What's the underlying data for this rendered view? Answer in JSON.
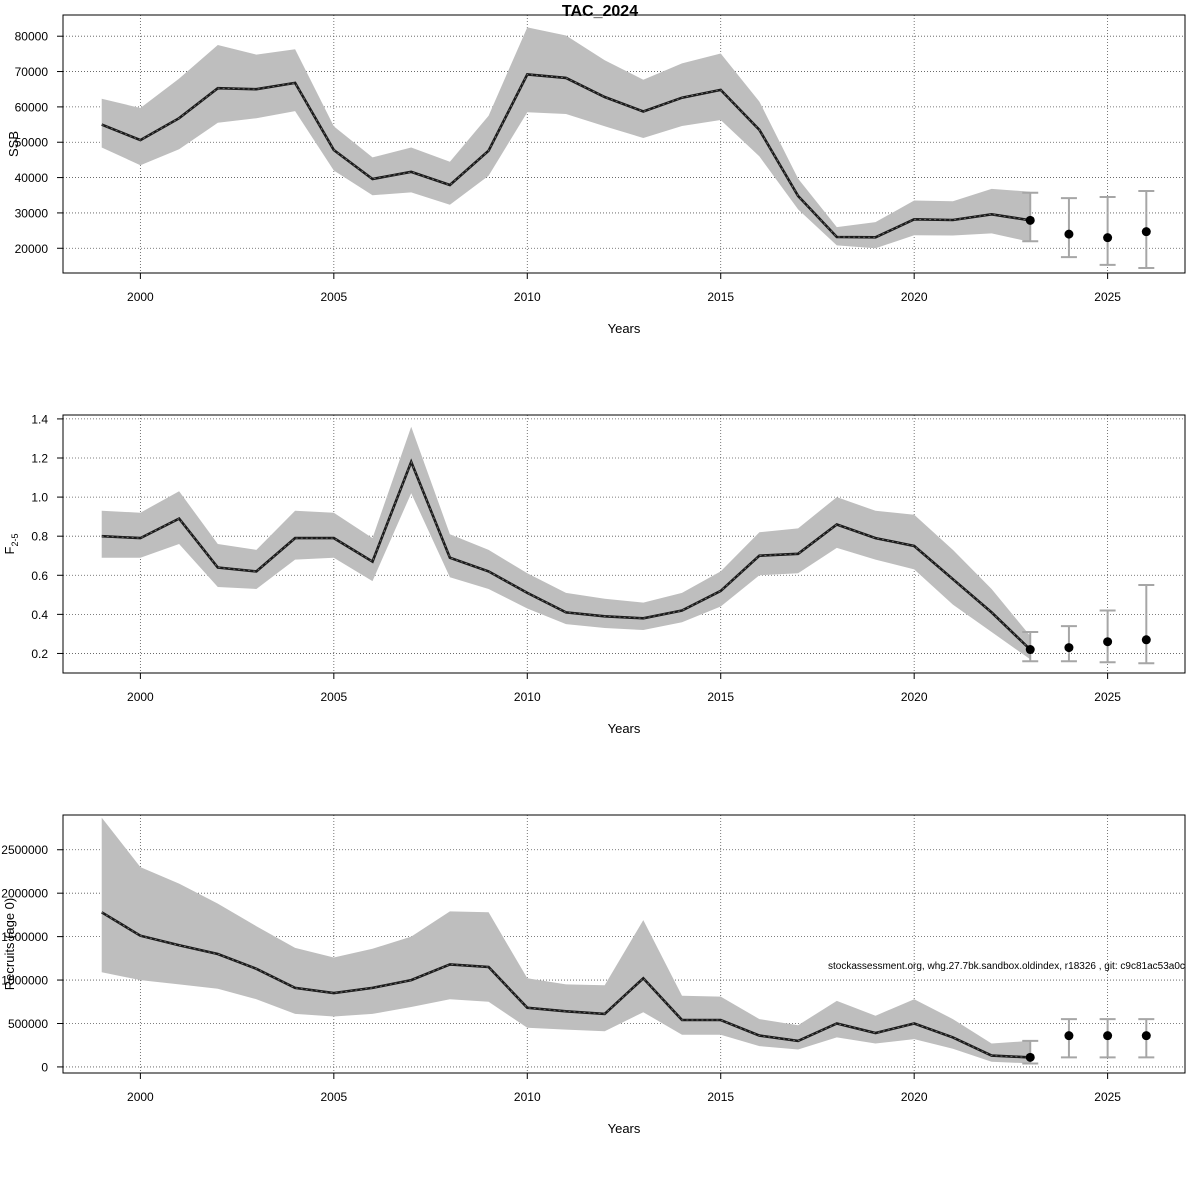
{
  "page": {
    "title": "TAC_2024",
    "footnote": "stockassessment.org, whg.27.7bk.sandbox.oldindex, r18326 , git: c9c81ac53a0c"
  },
  "colors": {
    "band": "#bebebe",
    "line": "#1a1a1a",
    "grid": "#555555",
    "errorbar": "#a6a6a6",
    "point": "#000000"
  },
  "chart_data": [
    {
      "type": "line",
      "name": "ssb",
      "title": "TAC_2024",
      "xlabel": "Years",
      "ylabel": "SSB",
      "ylabel_sub": "",
      "xlim": [
        1998,
        2027
      ],
      "ylim": [
        13000,
        86000
      ],
      "grid": true,
      "xticks": [
        "2000",
        "2005",
        "2010",
        "2015",
        "2020",
        "2025"
      ],
      "yticks": [
        "20000",
        "30000",
        "40000",
        "50000",
        "60000",
        "70000",
        "80000"
      ],
      "x": [
        1999,
        2000,
        2001,
        2002,
        2003,
        2004,
        2005,
        2006,
        2007,
        2008,
        2009,
        2010,
        2011,
        2012,
        2013,
        2014,
        2015,
        2016,
        2017,
        2018,
        2019,
        2020,
        2021,
        2022,
        2023
      ],
      "estimate": [
        55000,
        50600,
        56800,
        65300,
        65000,
        66800,
        47800,
        39600,
        41600,
        37900,
        47600,
        69200,
        68200,
        62800,
        58700,
        62600,
        64800,
        53500,
        34800,
        23200,
        23100,
        28200,
        28000,
        29600,
        27900
      ],
      "lower": [
        48500,
        43500,
        48000,
        55500,
        56800,
        58800,
        42000,
        35000,
        35800,
        32300,
        40500,
        58500,
        58000,
        54500,
        51200,
        54600,
        56300,
        46000,
        31000,
        20800,
        20000,
        23700,
        23600,
        24200,
        21800
      ],
      "upper": [
        62300,
        59700,
        68000,
        77500,
        74800,
        76300,
        54500,
        45700,
        48500,
        44500,
        57500,
        82500,
        80200,
        73200,
        67700,
        72300,
        75100,
        61500,
        39700,
        26000,
        27400,
        33500,
        33300,
        36800,
        36000
      ],
      "forecast": {
        "x": [
          2023,
          2024,
          2025,
          2026
        ],
        "median": [
          27900,
          24000,
          23000,
          24700
        ],
        "lower": [
          22000,
          17500,
          15300,
          14400
        ],
        "upper": [
          35700,
          34200,
          34500,
          36200
        ]
      }
    },
    {
      "type": "line",
      "name": "fbar",
      "title": "",
      "xlabel": "Years",
      "ylabel": "F",
      "ylabel_sub": "2-5",
      "xlim": [
        1998,
        2027
      ],
      "ylim": [
        0.1,
        1.42
      ],
      "grid": true,
      "xticks": [
        "2000",
        "2005",
        "2010",
        "2015",
        "2020",
        "2025"
      ],
      "yticks": [
        "0.2",
        "0.4",
        "0.6",
        "0.8",
        "1.0",
        "1.2",
        "1.4"
      ],
      "x": [
        1999,
        2000,
        2001,
        2002,
        2003,
        2004,
        2005,
        2006,
        2007,
        2008,
        2009,
        2010,
        2011,
        2012,
        2013,
        2014,
        2015,
        2016,
        2017,
        2018,
        2019,
        2020,
        2021,
        2022,
        2023
      ],
      "estimate": [
        0.8,
        0.79,
        0.89,
        0.64,
        0.62,
        0.79,
        0.79,
        0.67,
        1.18,
        0.69,
        0.62,
        0.51,
        0.41,
        0.39,
        0.38,
        0.42,
        0.52,
        0.7,
        0.71,
        0.86,
        0.79,
        0.75,
        0.58,
        0.41,
        0.22
      ],
      "lower": [
        0.69,
        0.69,
        0.76,
        0.54,
        0.53,
        0.68,
        0.69,
        0.57,
        1.02,
        0.59,
        0.53,
        0.43,
        0.35,
        0.33,
        0.32,
        0.36,
        0.44,
        0.6,
        0.61,
        0.74,
        0.68,
        0.63,
        0.45,
        0.31,
        0.17
      ],
      "upper": [
        0.93,
        0.92,
        1.03,
        0.76,
        0.73,
        0.93,
        0.92,
        0.79,
        1.36,
        0.81,
        0.73,
        0.61,
        0.51,
        0.48,
        0.46,
        0.51,
        0.62,
        0.82,
        0.84,
        1.0,
        0.93,
        0.91,
        0.73,
        0.53,
        0.29
      ],
      "forecast": {
        "x": [
          2023,
          2024,
          2025,
          2026
        ],
        "median": [
          0.22,
          0.23,
          0.26,
          0.27
        ],
        "lower": [
          0.16,
          0.16,
          0.155,
          0.15
        ],
        "upper": [
          0.31,
          0.34,
          0.42,
          0.55
        ]
      }
    },
    {
      "type": "line",
      "name": "recruitment",
      "title": "",
      "xlabel": "Years",
      "ylabel": "Recruits (age 0)",
      "ylabel_sub": "",
      "xlim": [
        1998,
        2027
      ],
      "ylim": [
        -70000,
        2900000
      ],
      "grid": true,
      "xticks": [
        "2000",
        "2005",
        "2010",
        "2015",
        "2020",
        "2025"
      ],
      "yticks": [
        "0",
        "500000",
        "1000000",
        "1500000",
        "2000000",
        "2500000"
      ],
      "x": [
        1999,
        2000,
        2001,
        2002,
        2003,
        2004,
        2005,
        2006,
        2007,
        2008,
        2009,
        2010,
        2011,
        2012,
        2013,
        2014,
        2015,
        2016,
        2017,
        2018,
        2019,
        2020,
        2021,
        2022,
        2023
      ],
      "estimate": [
        1780000,
        1510000,
        1400000,
        1300000,
        1130000,
        910000,
        850000,
        910000,
        1000000,
        1180000,
        1150000,
        680000,
        640000,
        610000,
        1020000,
        540000,
        540000,
        360000,
        300000,
        500000,
        390000,
        500000,
        340000,
        130000,
        110000
      ],
      "lower": [
        1090000,
        1000000,
        950000,
        900000,
        780000,
        610000,
        580000,
        610000,
        690000,
        780000,
        750000,
        450000,
        430000,
        410000,
        630000,
        370000,
        370000,
        240000,
        200000,
        340000,
        270000,
        320000,
        210000,
        60000,
        40000
      ],
      "upper": [
        2870000,
        2300000,
        2110000,
        1880000,
        1620000,
        1370000,
        1260000,
        1360000,
        1500000,
        1790000,
        1780000,
        1020000,
        950000,
        940000,
        1690000,
        820000,
        810000,
        550000,
        480000,
        760000,
        590000,
        780000,
        550000,
        270000,
        300000
      ],
      "forecast": {
        "x": [
          2023,
          2024,
          2025,
          2026
        ],
        "median": [
          110000,
          360000,
          360000,
          360000
        ],
        "lower": [
          40000,
          110000,
          110000,
          110000
        ],
        "upper": [
          300000,
          550000,
          550000,
          550000
        ]
      }
    }
  ]
}
